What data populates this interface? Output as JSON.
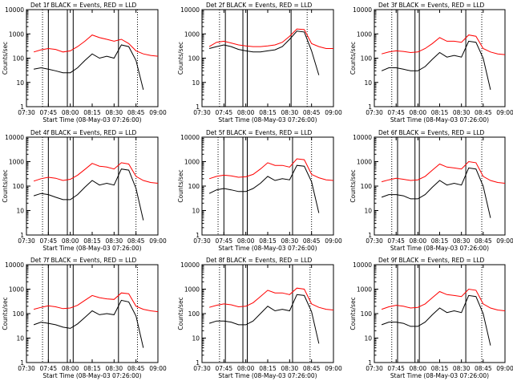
{
  "figure": {
    "xlabel": "Start Time (08-May-03 07:26:00)",
    "ylabel": "Counts/sec",
    "x_ticks": [
      "07:30",
      "07:45",
      "08:00",
      "08:15",
      "08:30",
      "08:45",
      "09:00"
    ],
    "y_ticks": [
      "1",
      "10",
      "100",
      "1000",
      "10000"
    ],
    "series_colors": {
      "events": "#000000",
      "lld": "#ff0000"
    }
  },
  "chart_data": [
    {
      "type": "line",
      "title": "Det 1f BLACK = Events, RED = LLD",
      "xlabel": "Start Time (08-May-03 07:26:00)",
      "ylabel": "Counts/sec",
      "x": [
        "07:35",
        "07:40",
        "07:45",
        "07:50",
        "07:55",
        "08:00",
        "08:05",
        "08:10",
        "08:15",
        "08:20",
        "08:25",
        "08:30",
        "08:35",
        "08:40",
        "08:45",
        "08:50",
        "08:55",
        "09:00"
      ],
      "ylim": [
        1,
        10000
      ],
      "yscale": "log",
      "series": [
        {
          "name": "LLD",
          "color": "#ff0000",
          "values": [
            180,
            220,
            250,
            230,
            180,
            200,
            300,
            500,
            900,
            700,
            600,
            500,
            600,
            400,
            200,
            150,
            130,
            120
          ]
        },
        {
          "name": "Events",
          "color": "#000000",
          "values": [
            35,
            40,
            35,
            30,
            25,
            25,
            40,
            80,
            150,
            100,
            120,
            100,
            350,
            300,
            80,
            5,
            null,
            null
          ]
        }
      ],
      "markers": {
        "solid": [
          "07:45",
          "07:58",
          "08:02",
          "08:33"
        ],
        "dotted": [
          "07:41",
          "08:46"
        ]
      }
    },
    {
      "type": "line",
      "title": "Det 2f BLACK = Events, RED = LLD",
      "xlabel": "Start Time (08-May-03 07:26:00)",
      "ylabel": "Counts/sec",
      "x": [
        "07:35",
        "07:40",
        "07:45",
        "07:50",
        "07:55",
        "08:00",
        "08:05",
        "08:10",
        "08:15",
        "08:20",
        "08:25",
        "08:30",
        "08:35",
        "08:40",
        "08:45",
        "08:50",
        "08:55",
        "09:00"
      ],
      "ylim": [
        1,
        10000
      ],
      "yscale": "log",
      "series": [
        {
          "name": "LLD",
          "color": "#ff0000",
          "values": [
            300,
            450,
            500,
            420,
            350,
            320,
            300,
            300,
            320,
            350,
            450,
            800,
            1600,
            1500,
            400,
            300,
            250,
            250
          ]
        },
        {
          "name": "Events",
          "color": "#000000",
          "values": [
            250,
            300,
            350,
            300,
            230,
            200,
            180,
            180,
            200,
            220,
            300,
            600,
            1300,
            1200,
            200,
            20,
            null,
            null
          ]
        }
      ],
      "markers": {
        "solid": [
          "07:46",
          "07:58",
          "08:01",
          "08:31"
        ],
        "dotted": [
          "07:42",
          "08:42"
        ]
      }
    },
    {
      "type": "line",
      "title": "Det 3f BLACK = Events, RED = LLD",
      "xlabel": "Start Time (08-May-03 07:26:00)",
      "ylabel": "Counts/sec",
      "x": [
        "07:35",
        "07:40",
        "07:45",
        "07:50",
        "07:55",
        "08:00",
        "08:05",
        "08:10",
        "08:15",
        "08:20",
        "08:25",
        "08:30",
        "08:35",
        "08:40",
        "08:45",
        "08:50",
        "08:55",
        "09:00"
      ],
      "ylim": [
        1,
        10000
      ],
      "yscale": "log",
      "series": [
        {
          "name": "LLD",
          "color": "#ff0000",
          "values": [
            150,
            180,
            200,
            190,
            170,
            180,
            250,
            400,
            700,
            500,
            500,
            450,
            900,
            800,
            250,
            180,
            150,
            140
          ]
        },
        {
          "name": "Events",
          "color": "#000000",
          "values": [
            30,
            40,
            40,
            35,
            30,
            30,
            45,
            90,
            170,
            110,
            130,
            110,
            500,
            450,
            100,
            5,
            null,
            null
          ]
        }
      ],
      "markers": {
        "solid": [
          "07:46",
          "07:58",
          "08:01",
          "08:33"
        ],
        "dotted": [
          "07:42",
          "08:44"
        ]
      }
    },
    {
      "type": "line",
      "title": "Det 4f BLACK = Events, RED = LLD",
      "xlabel": "Start Time (08-May-03 07:26:00)",
      "ylabel": "Counts/sec",
      "x": [
        "07:35",
        "07:40",
        "07:45",
        "07:50",
        "07:55",
        "08:00",
        "08:05",
        "08:10",
        "08:15",
        "08:20",
        "08:25",
        "08:30",
        "08:35",
        "08:40",
        "08:45",
        "08:50",
        "08:55",
        "09:00"
      ],
      "ylim": [
        1,
        10000
      ],
      "yscale": "log",
      "series": [
        {
          "name": "LLD",
          "color": "#ff0000",
          "values": [
            160,
            200,
            230,
            210,
            170,
            190,
            280,
            480,
            850,
            650,
            600,
            500,
            900,
            800,
            250,
            170,
            140,
            130
          ]
        },
        {
          "name": "Events",
          "color": "#000000",
          "values": [
            40,
            50,
            45,
            35,
            28,
            28,
            45,
            90,
            170,
            110,
            130,
            110,
            500,
            450,
            80,
            4,
            null,
            null
          ]
        }
      ],
      "markers": {
        "solid": [
          "07:45",
          "07:58",
          "08:02",
          "08:33"
        ],
        "dotted": [
          "07:41",
          "08:45"
        ]
      }
    },
    {
      "type": "line",
      "title": "Det 5f BLACK = Events, RED = LLD",
      "xlabel": "Start Time (08-May-03 07:26:00)",
      "ylabel": "Counts/sec",
      "x": [
        "07:35",
        "07:40",
        "07:45",
        "07:50",
        "07:55",
        "08:00",
        "08:05",
        "08:10",
        "08:15",
        "08:20",
        "08:25",
        "08:30",
        "08:35",
        "08:40",
        "08:45",
        "08:50",
        "08:55",
        "09:00"
      ],
      "ylim": [
        1,
        10000
      ],
      "yscale": "log",
      "series": [
        {
          "name": "LLD",
          "color": "#ff0000",
          "values": [
            200,
            250,
            280,
            260,
            230,
            240,
            300,
            500,
            900,
            700,
            700,
            600,
            1300,
            1200,
            300,
            220,
            180,
            170
          ]
        },
        {
          "name": "Events",
          "color": "#000000",
          "values": [
            50,
            70,
            80,
            70,
            60,
            60,
            80,
            130,
            250,
            170,
            200,
            180,
            700,
            650,
            150,
            8,
            null,
            null
          ]
        }
      ],
      "markers": {
        "solid": [
          "07:45",
          "07:58",
          "08:01",
          "08:32"
        ],
        "dotted": [
          "07:41",
          "08:45"
        ]
      }
    },
    {
      "type": "line",
      "title": "Det 6f BLACK = Events, RED = LLD",
      "xlabel": "Start Time (08-May-03 07:26:00)",
      "ylabel": "Counts/sec",
      "x": [
        "07:35",
        "07:40",
        "07:45",
        "07:50",
        "07:55",
        "08:00",
        "08:05",
        "08:10",
        "08:15",
        "08:20",
        "08:25",
        "08:30",
        "08:35",
        "08:40",
        "08:45",
        "08:50",
        "08:55",
        "09:00"
      ],
      "ylim": [
        1,
        10000
      ],
      "yscale": "log",
      "series": [
        {
          "name": "LLD",
          "color": "#ff0000",
          "values": [
            150,
            180,
            210,
            190,
            170,
            180,
            250,
            450,
            800,
            600,
            550,
            500,
            1000,
            900,
            250,
            170,
            140,
            130
          ]
        },
        {
          "name": "Events",
          "color": "#000000",
          "values": [
            35,
            45,
            45,
            40,
            30,
            30,
            45,
            90,
            170,
            110,
            130,
            110,
            550,
            500,
            100,
            5,
            null,
            null
          ]
        }
      ],
      "markers": {
        "solid": [
          "07:46",
          "07:58",
          "08:01",
          "08:33"
        ],
        "dotted": [
          "07:42",
          "08:44"
        ]
      }
    },
    {
      "type": "line",
      "title": "Det 7f BLACK = Events, RED = LLD",
      "xlabel": "Start Time (08-May-03 07:26:00)",
      "ylabel": "Counts/sec",
      "x": [
        "07:35",
        "07:40",
        "07:45",
        "07:50",
        "07:55",
        "08:00",
        "08:05",
        "08:10",
        "08:15",
        "08:20",
        "08:25",
        "08:30",
        "08:35",
        "08:40",
        "08:45",
        "08:50",
        "08:55",
        "09:00"
      ],
      "ylim": [
        1,
        10000
      ],
      "yscale": "log",
      "series": [
        {
          "name": "LLD",
          "color": "#ff0000",
          "values": [
            150,
            180,
            210,
            190,
            160,
            170,
            220,
            350,
            550,
            450,
            400,
            380,
            700,
            650,
            200,
            150,
            130,
            120
          ]
        },
        {
          "name": "Events",
          "color": "#000000",
          "values": [
            35,
            45,
            40,
            35,
            28,
            25,
            38,
            70,
            130,
            90,
            100,
            90,
            350,
            300,
            80,
            4,
            null,
            null
          ]
        }
      ],
      "markers": {
        "solid": [
          "07:45",
          "07:58",
          "08:02",
          "08:33"
        ],
        "dotted": [
          "07:41",
          "08:46"
        ]
      }
    },
    {
      "type": "line",
      "title": "Det 8f BLACK = Events, RED = LLD",
      "xlabel": "Start Time (08-May-03 07:26:00)",
      "ylabel": "Counts/sec",
      "x": [
        "07:35",
        "07:40",
        "07:45",
        "07:50",
        "07:55",
        "08:00",
        "08:05",
        "08:10",
        "08:15",
        "08:20",
        "08:25",
        "08:30",
        "08:35",
        "08:40",
        "08:45",
        "08:50",
        "08:55",
        "09:00"
      ],
      "ylim": [
        1,
        10000
      ],
      "yscale": "log",
      "series": [
        {
          "name": "LLD",
          "color": "#ff0000",
          "values": [
            180,
            220,
            250,
            230,
            190,
            200,
            280,
            500,
            900,
            700,
            700,
            600,
            1100,
            1000,
            250,
            180,
            150,
            140
          ]
        },
        {
          "name": "Events",
          "color": "#000000",
          "values": [
            40,
            50,
            50,
            45,
            35,
            35,
            50,
            100,
            200,
            130,
            150,
            130,
            600,
            550,
            120,
            6,
            null,
            null
          ]
        }
      ],
      "markers": {
        "solid": [
          "07:46",
          "07:58",
          "08:01",
          "08:32"
        ],
        "dotted": [
          "07:42",
          "08:44"
        ]
      }
    },
    {
      "type": "line",
      "title": "Det 9f BLACK = Events, RED = LLD",
      "xlabel": "Start Time (08-May-03 07:26:00)",
      "ylabel": "Counts/sec",
      "x": [
        "07:35",
        "07:40",
        "07:45",
        "07:50",
        "07:55",
        "08:00",
        "08:05",
        "08:10",
        "08:15",
        "08:20",
        "08:25",
        "08:30",
        "08:35",
        "08:40",
        "08:45",
        "08:50",
        "08:55",
        "09:00"
      ],
      "ylim": [
        1,
        10000
      ],
      "yscale": "log",
      "series": [
        {
          "name": "LLD",
          "color": "#ff0000",
          "values": [
            150,
            190,
            220,
            200,
            170,
            180,
            250,
            450,
            800,
            600,
            550,
            500,
            1000,
            900,
            250,
            170,
            140,
            130
          ]
        },
        {
          "name": "Events",
          "color": "#000000",
          "values": [
            35,
            45,
            45,
            40,
            30,
            30,
            45,
            90,
            170,
            110,
            130,
            110,
            550,
            500,
            100,
            5,
            null,
            null
          ]
        }
      ],
      "markers": {
        "solid": [
          "07:46",
          "07:58",
          "08:01",
          "08:33"
        ],
        "dotted": [
          "07:42",
          "08:44"
        ]
      }
    }
  ]
}
